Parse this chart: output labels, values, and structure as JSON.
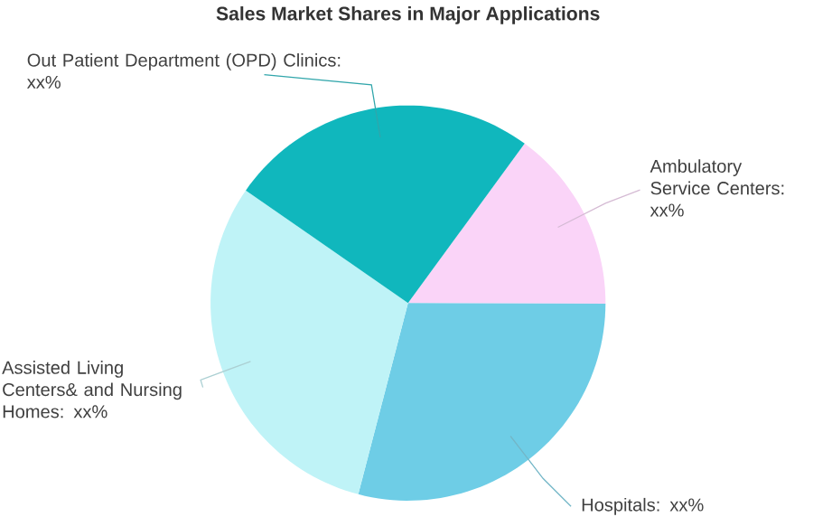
{
  "chart_data": {
    "type": "pie",
    "title": "Sales Market Shares in Major Applications",
    "categories": [
      "Ambulatory Service Centers: xx%",
      "Hospitals: xx%",
      "Assisted Living Centers& and Nursing Homes: xx%",
      "Out Patient Department (OPD) Clinics: xx%"
    ],
    "values": [
      15.0,
      29.0,
      30.6,
      25.4
    ],
    "colors": [
      "#fad4f8",
      "#6ecde6",
      "#bff3f7",
      "#10b7bd"
    ]
  }
}
